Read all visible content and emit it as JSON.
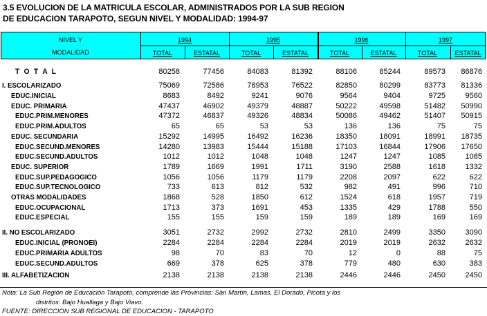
{
  "title_line1": "3.5    EVOLUCION DE LA MATRICULA ESCOLAR, ADMINISTRADOS POR LA SUB REGION",
  "title_line2": "DE EDUCACION TARAPOTO, SEGUN NIVEL Y MODALIDAD: 1994-97",
  "header": {
    "nivel": "NIVEL  Y",
    "modalidad": "MODALIDAD",
    "years": [
      "1994",
      "1995",
      "1996",
      "1997"
    ],
    "sub": [
      "TOTAL",
      "ESTATAL"
    ]
  },
  "rows": [
    {
      "label": "T O T A L",
      "level": 0,
      "values": [
        "80258",
        "77456",
        "84083",
        "81392",
        "88106",
        "85244",
        "89573",
        "86876"
      ]
    },
    {
      "label": "I. ESCOLARIZADO",
      "level": 1,
      "values": [
        "75069",
        "72586",
        "78953",
        "76522",
        "82850",
        "80299",
        "83773",
        "81336"
      ]
    },
    {
      "label": "EDUC.INICIAL",
      "level": 2,
      "values": [
        "8683",
        "8492",
        "9241",
        "9076",
        "9564",
        "9404",
        "9725",
        "9560"
      ]
    },
    {
      "label": "EDUC. PRIMARIA",
      "level": 2,
      "values": [
        "47437",
        "46902",
        "49379",
        "48887",
        "50222",
        "49598",
        "51482",
        "50990"
      ]
    },
    {
      "label": "EDUC.PRIM.MENORES",
      "level": 3,
      "values": [
        "47372",
        "46837",
        "49326",
        "48834",
        "50086",
        "49462",
        "51407",
        "50915"
      ]
    },
    {
      "label": "EDUC.PRIM.ADULTOS",
      "level": 3,
      "values": [
        "65",
        "65",
        "53",
        "53",
        "136",
        "136",
        "75",
        "75"
      ]
    },
    {
      "label": "EDUC. SECUNDARIA",
      "level": 2,
      "values": [
        "15292",
        "14995",
        "16492",
        "16236",
        "18350",
        "18091",
        "18991",
        "18735"
      ]
    },
    {
      "label": "EDUC.SECUND.MENORES",
      "level": 3,
      "values": [
        "14280",
        "13983",
        "15444",
        "15188",
        "17103",
        "16844",
        "17906",
        "17650"
      ]
    },
    {
      "label": "EDUC.SECUND.ADULTOS",
      "level": 3,
      "values": [
        "1012",
        "1012",
        "1048",
        "1048",
        "1247",
        "1247",
        "1085",
        "1085"
      ]
    },
    {
      "label": "EDUC. SUPERIOR",
      "level": 2,
      "values": [
        "1789",
        "1669",
        "1991",
        "1711",
        "3190",
        "2588",
        "1618",
        "1332"
      ]
    },
    {
      "label": "EDUC.SUP.PEDAGOGICO",
      "level": 3,
      "values": [
        "1056",
        "1056",
        "1179",
        "1179",
        "2208",
        "2097",
        "622",
        "622"
      ]
    },
    {
      "label": "EDUC.SUP.TECNOLOGICO",
      "level": 3,
      "values": [
        "733",
        "613",
        "812",
        "532",
        "982",
        "491",
        "996",
        "710"
      ]
    },
    {
      "label": "OTRAS MODALIDADES",
      "level": 2,
      "values": [
        "1868",
        "528",
        "1850",
        "612",
        "1524",
        "618",
        "1957",
        "719"
      ]
    },
    {
      "label": "EDUC.OCUPACIONAL",
      "level": 3,
      "values": [
        "1713",
        "373",
        "1691",
        "453",
        "1335",
        "429",
        "1788",
        "550"
      ]
    },
    {
      "label": "EDUC.ESPECIAL",
      "level": 3,
      "values": [
        "155",
        "155",
        "159",
        "159",
        "189",
        "189",
        "169",
        "169"
      ]
    },
    {
      "label": "II. NO ESCOLARIZADO",
      "level": 1,
      "values": [
        "3051",
        "2732",
        "2992",
        "2732",
        "2810",
        "2499",
        "3350",
        "3090"
      ]
    },
    {
      "label": "EDUC.INICIAL (PRONOEI)",
      "level": 3,
      "values": [
        "2284",
        "2284",
        "2284",
        "2284",
        "2019",
        "2019",
        "2632",
        "2632"
      ]
    },
    {
      "label": "EDUC.PRIMARIA ADULTOS",
      "level": 3,
      "values": [
        "98",
        "70",
        "83",
        "70",
        "12",
        "0",
        "88",
        "75"
      ]
    },
    {
      "label": "EDUC.SECUND.ADULTOS",
      "level": 3,
      "values": [
        "669",
        "378",
        "625",
        "378",
        "779",
        "480",
        "630",
        "383"
      ]
    },
    {
      "label": "III. ALFABETIZACION",
      "level": 1,
      "values": [
        "2138",
        "2138",
        "2138",
        "2138",
        "2446",
        "2446",
        "2450",
        "2450"
      ]
    }
  ],
  "note_line1": "Nota: La Sub Región de Educación Tarapoto, comprende las Provincias: San Martín, Lamas, El Dorado, Picota y los",
  "note_line2": "distritos: Bajo Huallaga y Bajo Viavo.",
  "source": "FUENTE: DIRECCION SUB REGIONAL DE EDUCACION - TARAPOTO"
}
